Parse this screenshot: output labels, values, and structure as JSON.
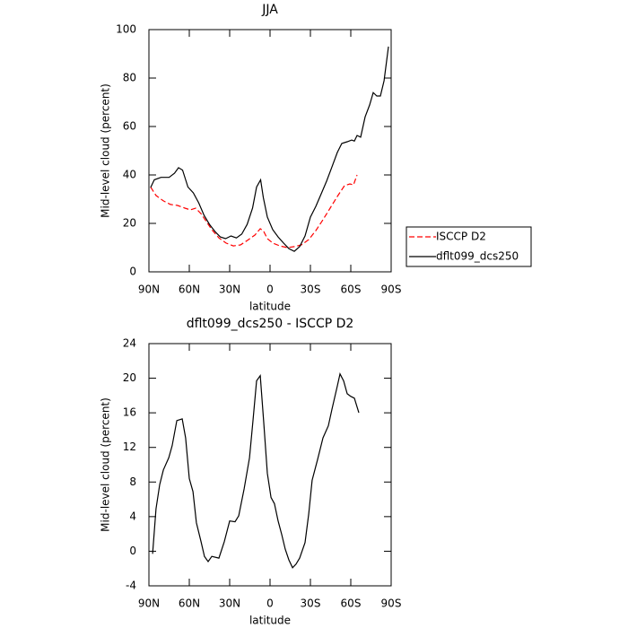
{
  "chart_data": [
    {
      "type": "line",
      "title": "JJA",
      "x_label": "latitude",
      "y_label": "Mid-level cloud (percent)",
      "xlim": [
        90,
        -90
      ],
      "ylim": [
        0,
        100
      ],
      "legend": "right",
      "xticks": [
        {
          "value": 90,
          "label": "90N"
        },
        {
          "value": 60,
          "label": "60N"
        },
        {
          "value": 30,
          "label": "30N"
        },
        0,
        {
          "value": -30,
          "label": "30S"
        },
        {
          "value": -60,
          "label": "60S"
        },
        {
          "value": -90,
          "label": "90S"
        }
      ],
      "yticks": [
        0,
        20,
        40,
        60,
        80,
        100
      ],
      "series": [
        {
          "name": "ISCCP D2",
          "color": "#ff0000",
          "dash": true,
          "x": [
            88.7,
            84.7,
            79.3,
            74,
            68.7,
            63.3,
            59.3,
            55.3,
            51.3,
            47.3,
            43.3,
            38,
            32.7,
            27.3,
            22,
            16.7,
            11.3,
            7.3,
            4.7,
            2,
            -2,
            -7.3,
            -12.7,
            -18,
            -23.3,
            -28.7,
            -34,
            -39.3,
            -44.7,
            -50,
            -55.3,
            -59.3,
            -62,
            -64.7
          ],
          "values": [
            35,
            31.5,
            29.3,
            27.8,
            27.4,
            26.3,
            25.6,
            26.3,
            24,
            20.7,
            17.4,
            14,
            11.9,
            10.7,
            11.1,
            13,
            15.2,
            17.8,
            16.7,
            13.7,
            11.9,
            10.7,
            10,
            10.4,
            11.1,
            13.3,
            17,
            21.5,
            26.3,
            31.1,
            35.6,
            36.3,
            35.9,
            40
          ]
        },
        {
          "name": "dflt099_dcs250",
          "color": "#000000",
          "dash": false,
          "x": [
            88.7,
            86,
            81,
            75,
            71,
            68,
            65,
            61,
            57,
            53,
            49,
            45,
            41,
            37,
            33,
            29,
            25,
            21,
            17,
            13,
            10,
            7,
            5,
            2,
            -2,
            -6,
            -10,
            -14,
            -18,
            -22,
            -26,
            -30,
            -34,
            -38,
            -42,
            -46,
            -50,
            -53.3,
            -57.3,
            -60.7,
            -62.7,
            -64.7,
            -67.3,
            -70.7,
            -74,
            -76.7,
            -79.3,
            -82,
            -84.7,
            -88
          ],
          "values": [
            34.8,
            38,
            39,
            39,
            40.7,
            43,
            42,
            35,
            32.6,
            28.5,
            23.3,
            19.6,
            16.7,
            14.4,
            13.7,
            14.8,
            14,
            15.6,
            19.6,
            26.3,
            35,
            38,
            30.7,
            22.6,
            17.4,
            14.4,
            11.9,
            9.6,
            8.5,
            10.4,
            14.8,
            22.6,
            27,
            32.2,
            37.4,
            43.3,
            49.3,
            53,
            53.7,
            54.4,
            54,
            56.3,
            55.6,
            64,
            68.9,
            74,
            72.6,
            72.6,
            78.9,
            93
          ]
        }
      ]
    },
    {
      "type": "line",
      "title": "dflt099_dcs250 - ISCCP D2",
      "x_label": "latitude",
      "y_label": "Mid-level cloud (percent)",
      "xlim": [
        90,
        -90
      ],
      "ylim": [
        -4,
        24
      ],
      "xticks": [
        {
          "value": 90,
          "label": "90N"
        },
        {
          "value": 60,
          "label": "60N"
        },
        {
          "value": 30,
          "label": "30N"
        },
        0,
        {
          "value": -30,
          "label": "30S"
        },
        {
          "value": -60,
          "label": "60S"
        },
        {
          "value": -90,
          "label": "90S"
        }
      ],
      "yticks": [
        -4,
        0,
        4,
        8,
        12,
        16,
        20,
        24
      ],
      "series": [
        {
          "color": "#000000",
          "dash": false,
          "x": [
            87.3,
            84.7,
            82,
            79.3,
            75.3,
            72.7,
            69.3,
            65.3,
            62.7,
            60,
            57.3,
            54.7,
            51.3,
            48.7,
            46,
            43.3,
            38,
            34,
            30,
            26,
            23.3,
            19.3,
            15.3,
            12.7,
            10,
            7.3,
            4.7,
            2,
            -0.7,
            -3.3,
            -6,
            -8.7,
            -11.3,
            -14,
            -16.7,
            -19.3,
            -22,
            -26,
            -28.7,
            -31.3,
            -35.3,
            -39.3,
            -43.3,
            -46,
            -50,
            -52,
            -54.7,
            -57.3,
            -60,
            -62.7,
            -66
          ],
          "values": [
            -0.3,
            4.9,
            7.7,
            9.4,
            10.8,
            12.2,
            15.1,
            15.3,
            13.1,
            8.4,
            6.9,
            3.3,
            1.1,
            -0.6,
            -1.2,
            -0.6,
            -0.8,
            1.1,
            3.5,
            3.4,
            4.1,
            7.2,
            10.8,
            15,
            19.7,
            20.3,
            15,
            9,
            6.2,
            5.5,
            3.5,
            1.9,
            0.25,
            -1,
            -1.9,
            -1.5,
            -0.8,
            1,
            4.3,
            8.2,
            10.6,
            13.1,
            14.5,
            16.4,
            19.1,
            20.5,
            19.7,
            18.2,
            17.9,
            17.7,
            16
          ]
        }
      ]
    }
  ]
}
